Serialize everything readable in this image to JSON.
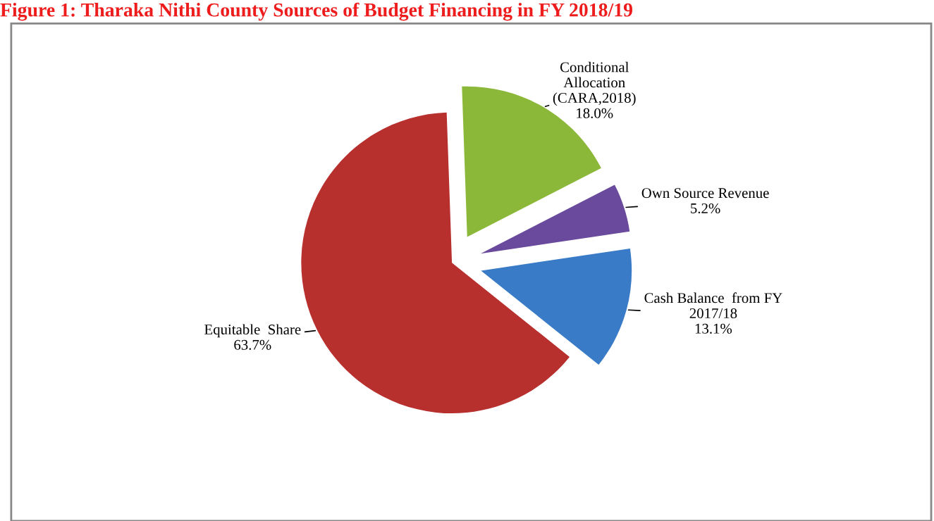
{
  "chart_data": {
    "type": "pie",
    "title": "Figure 1: Tharaka Nithi County Sources of Budget Financing in FY 2018/19",
    "categories": [
      "Equitable  Share",
      "Cash Balance  from FY\n2017/18",
      "Own Source Revenue",
      "Conditional\nAllocation\n(CARA,2018)"
    ],
    "values": [
      63.7,
      13.1,
      5.2,
      18.0
    ],
    "colors": [
      "#b8302e",
      "#3a7bc8",
      "#6a4a9c",
      "#8cb83a"
    ],
    "value_labels": [
      "63.7%",
      "13.1%",
      "5.2%",
      "18.0%"
    ]
  }
}
